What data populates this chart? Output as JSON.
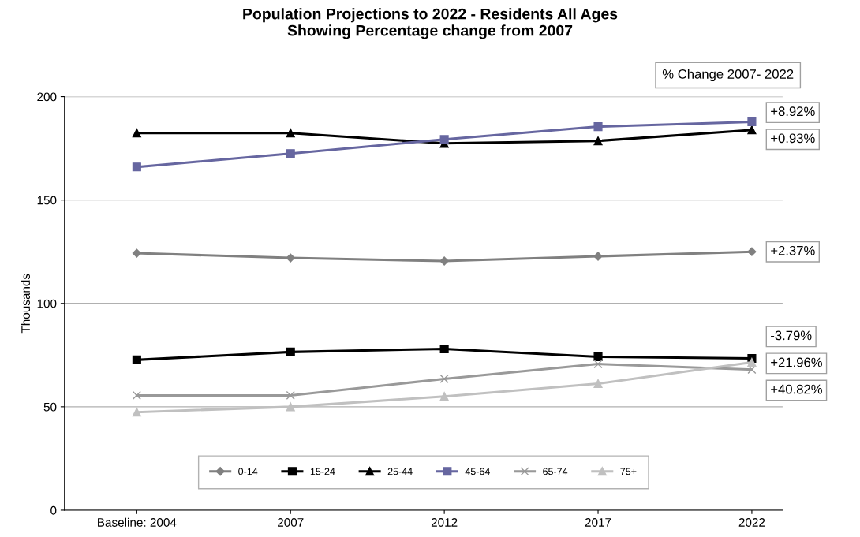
{
  "chart_data": {
    "type": "line",
    "title": "Population Projections to 2022 - Residents All Ages\nShowing Percentage change from 2007",
    "ylabel": "Thousands",
    "categories": [
      "Baseline: 2004",
      "2007",
      "2012",
      "2017",
      "2022"
    ],
    "series": [
      {
        "name": "0-14",
        "color": "#808080",
        "marker": "diamond",
        "values": [
          124.3,
          122,
          120.5,
          122.8,
          125
        ]
      },
      {
        "name": "15-24",
        "color": "#000000",
        "marker": "square",
        "values": [
          72.7,
          76.5,
          78,
          74.2,
          73.4
        ]
      },
      {
        "name": "25-44",
        "color": "#000000",
        "marker": "triangle",
        "values": [
          182.4,
          182.4,
          177.4,
          178.6,
          183.9
        ]
      },
      {
        "name": "45-64",
        "color": "#6666a0",
        "marker": "square",
        "values": [
          166,
          172.5,
          179.3,
          185.5,
          187.8
        ]
      },
      {
        "name": "65-74",
        "color": "#999999",
        "marker": "cross",
        "values": [
          55.5,
          55.5,
          63.5,
          70.7,
          68
        ]
      },
      {
        "name": "75+",
        "color": "#c0c0c0",
        "marker": "triangle",
        "values": [
          47.4,
          50,
          55,
          61.2,
          71.5
        ]
      }
    ],
    "annotations": [
      "% Change 2007- 2022",
      {
        "text": "+8.92%",
        "x": "2022",
        "y": 187.8
      },
      {
        "text": "+0.93%",
        "x": "2022",
        "y": 183.9
      },
      {
        "text": "+2.37%",
        "x": "2022",
        "y": 125
      },
      {
        "text": "-3.79%",
        "x": "2022",
        "y": 73.4
      },
      {
        "text": "+21.96%",
        "x": "2022",
        "y": 68
      },
      {
        "text": "+40.82%",
        "x": "2022",
        "y": 71.5
      }
    ],
    "ylim": [
      0,
      200
    ],
    "yticks": [
      0,
      50,
      100,
      150,
      200
    ],
    "grid": "y",
    "legend": "bottom"
  }
}
